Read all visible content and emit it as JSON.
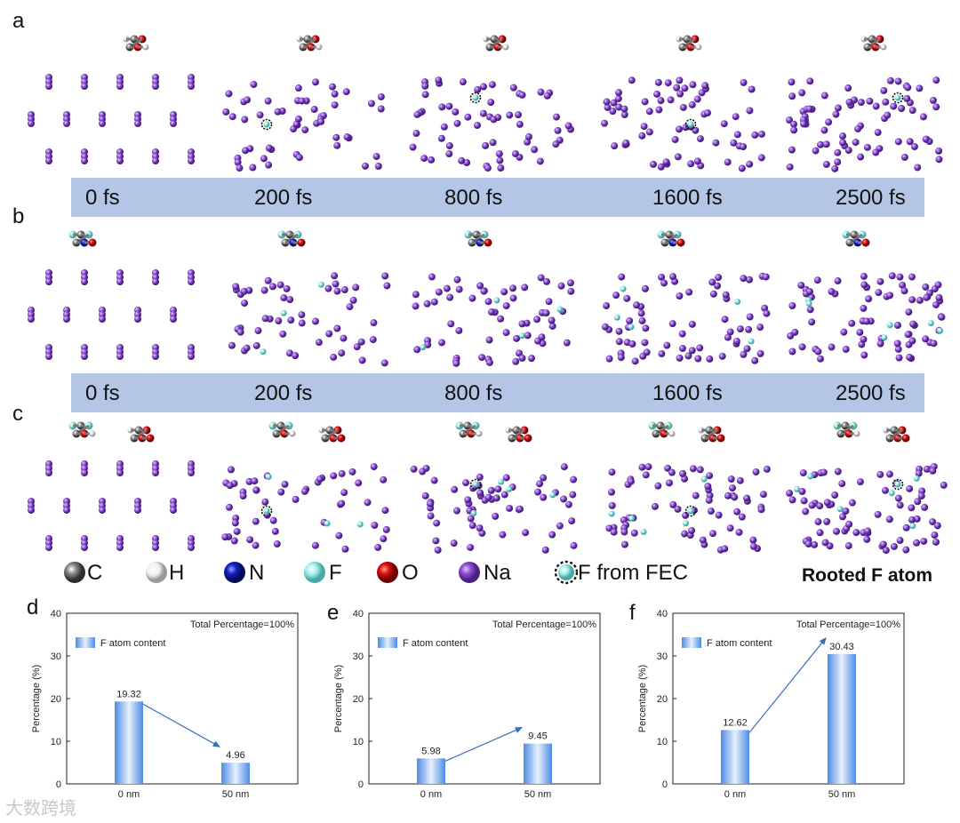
{
  "panels": {
    "a": "a",
    "b": "b",
    "c": "c",
    "d": "d",
    "e": "e",
    "f": "f"
  },
  "timeline": {
    "row_a": [
      "0 fs",
      "200 fs",
      "800 fs",
      "1600 fs",
      "2500 fs"
    ],
    "row_b": [
      "0 fs",
      "200 fs",
      "800 fs",
      "1600 fs",
      "2500 fs"
    ]
  },
  "legend": {
    "items": [
      {
        "label": "C",
        "color": "#6b6b6b"
      },
      {
        "label": "H",
        "color": "#f2f2f2"
      },
      {
        "label": "N",
        "color": "#1420c8"
      },
      {
        "label": "F",
        "color": "#a8f0ee"
      },
      {
        "label": "O",
        "color": "#e01010"
      },
      {
        "label": "Na",
        "color": "#9050d8"
      },
      {
        "label": "F from FEC",
        "color": "#a8f0ee"
      }
    ],
    "rooted_label": "Rooted F atom"
  },
  "colors": {
    "na": "#9a5ee0",
    "band": "#b4c6e6",
    "bar": "#6aa3ea",
    "arrow": "#3a6fb8"
  },
  "watermark": "大数跨境",
  "chart_data": [
    {
      "panel": "d",
      "type": "bar",
      "categories": [
        "0 nm",
        "50 nm"
      ],
      "values": [
        19.32,
        4.96
      ],
      "value_labels": [
        "19.32",
        "4.96"
      ],
      "ylabel": "Percentage (%)",
      "ylim": [
        0,
        40
      ],
      "yticks": [
        "0",
        "10",
        "20",
        "30",
        "40"
      ],
      "legend": "F atom content",
      "annotation": "Total Percentage=100%"
    },
    {
      "panel": "e",
      "type": "bar",
      "categories": [
        "0 nm",
        "50 nm"
      ],
      "values": [
        5.98,
        9.45
      ],
      "value_labels": [
        "5.98",
        "9.45"
      ],
      "ylabel": "Percentage (%)",
      "ylim": [
        0,
        40
      ],
      "yticks": [
        "0",
        "10",
        "20",
        "30",
        "40"
      ],
      "legend": "F atom content",
      "annotation": "Total Percentage=100%"
    },
    {
      "panel": "f",
      "type": "bar",
      "categories": [
        "0 nm",
        "50 nm"
      ],
      "values": [
        12.62,
        30.43
      ],
      "value_labels": [
        "12.62",
        "30.43"
      ],
      "ylabel": "Percentage (%)",
      "ylim": [
        0,
        40
      ],
      "yticks": [
        "0",
        "10",
        "20",
        "30",
        "40"
      ],
      "legend": "F atom content",
      "annotation": "Total Percentage=100%"
    }
  ]
}
